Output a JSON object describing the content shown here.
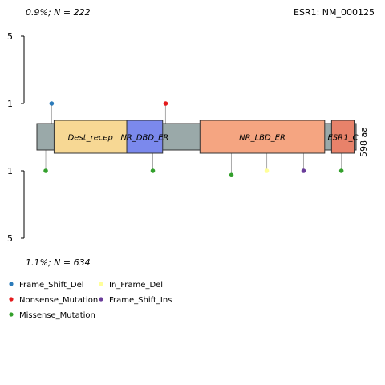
{
  "chart_data": {
    "type": "lollipop",
    "title": "ESR1: NM_000125",
    "top_summary": "0.9%; N = 222",
    "bottom_summary": "1.1%; N = 634",
    "protein_length": 598,
    "length_label": "598 aa",
    "top_axis": {
      "ticks": [
        "5",
        "1"
      ],
      "max_count": 5
    },
    "bottom_axis": {
      "ticks": [
        "1",
        "5"
      ],
      "max_count": 5
    },
    "domains": [
      {
        "name": "Dest_recep",
        "start": 35,
        "end": 183,
        "color": "#f7d894"
      },
      {
        "name": "NR_DBD_ER",
        "start": 183,
        "end": 256,
        "color": "#7b89ed"
      },
      {
        "name": "NR_LBD_ER",
        "start": 332,
        "end": 586,
        "color": "#f5a581"
      },
      {
        "name": "ESR1_C",
        "start": 600,
        "end": 646,
        "color": "#e8826a"
      }
    ],
    "mutation_types": [
      {
        "name": "Frame_Shift_Del",
        "color": "#2b7bba"
      },
      {
        "name": "Nonsense_Mutation",
        "color": "#e41a1c"
      },
      {
        "name": "Missense_Mutation",
        "color": "#33a02c"
      },
      {
        "name": "In_Frame_Del",
        "color": "#ffff99"
      },
      {
        "name": "Frame_Shift_Ins",
        "color": "#6a3d9a"
      }
    ],
    "top_mutations": [
      {
        "pos": 30,
        "count": 1,
        "type": "Frame_Shift_Del"
      },
      {
        "pos": 262,
        "count": 1,
        "type": "Nonsense_Mutation"
      }
    ],
    "bottom_mutations": [
      {
        "pos": 18,
        "count": 1,
        "type": "Missense_Mutation"
      },
      {
        "pos": 236,
        "count": 1,
        "type": "Missense_Mutation"
      },
      {
        "pos": 396,
        "count": 1.25,
        "type": "Missense_Mutation"
      },
      {
        "pos": 468,
        "count": 1,
        "type": "In_Frame_Del"
      },
      {
        "pos": 543,
        "count": 1,
        "type": "Frame_Shift_Ins"
      },
      {
        "pos": 620,
        "count": 1,
        "type": "Missense_Mutation"
      }
    ]
  }
}
